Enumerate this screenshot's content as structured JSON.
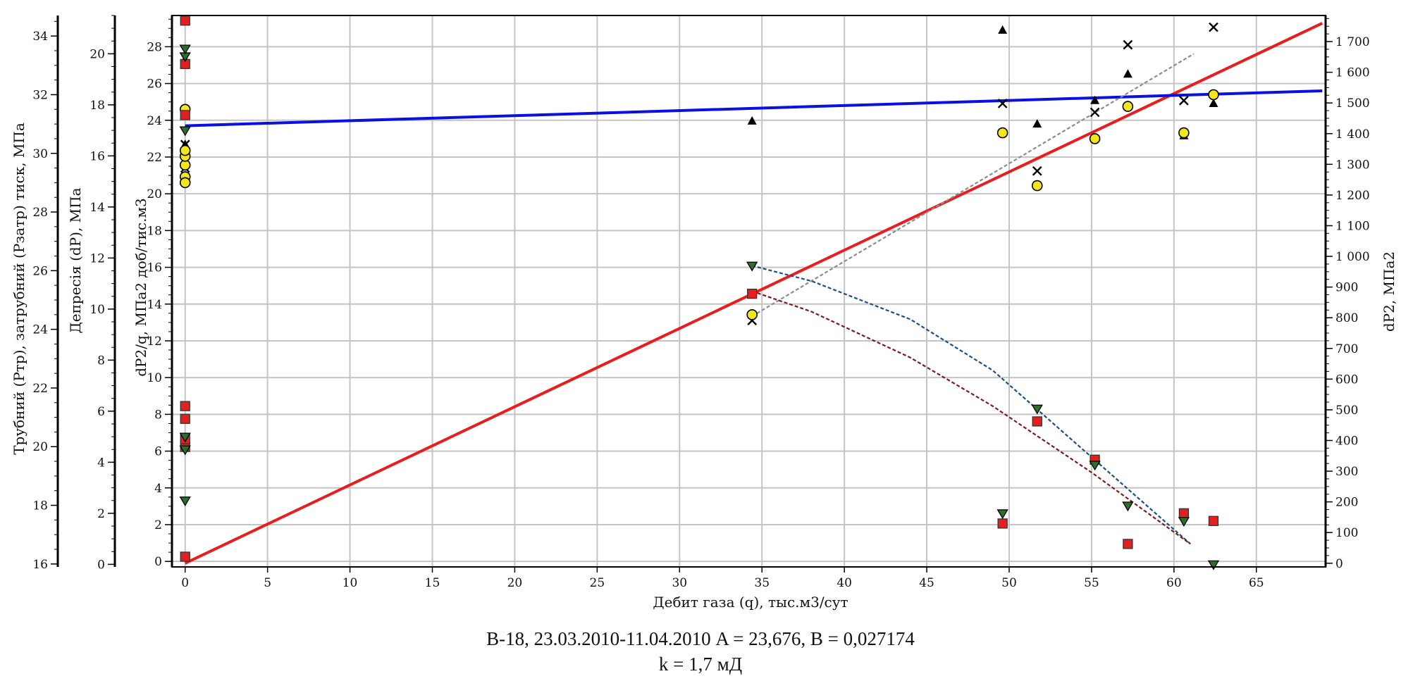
{
  "chart_data": {
    "type": "scatter",
    "xlabel": "Дебит газа (q), тыс.м3/сут",
    "xlim": [
      -0.8,
      69.2
    ],
    "xticks": [
      0,
      5,
      10,
      15,
      20,
      25,
      30,
      35,
      40,
      45,
      50,
      55,
      60,
      65
    ],
    "grid": true,
    "axes": {
      "ptr": {
        "label": "Трубний (Ртр), затрубний (Рзатр) тиск, МПа",
        "ylim": [
          15.9,
          34.7
        ],
        "ticks": [
          16,
          18,
          20,
          22,
          24,
          26,
          28,
          30,
          32,
          34
        ]
      },
      "dp": {
        "label": "Депресія (dP), МПа",
        "ylim": [
          -0.1,
          21.5
        ],
        "ticks": [
          0,
          2,
          4,
          6,
          8,
          10,
          12,
          14,
          16,
          18,
          20
        ]
      },
      "dp2q": {
        "label": "dP2/q, МПа2 доб/тис.м3",
        "ylim": [
          -0.3,
          29.7
        ],
        "ticks": [
          0,
          2,
          4,
          6,
          8,
          10,
          12,
          14,
          16,
          18,
          20,
          22,
          24,
          26,
          28
        ]
      },
      "dp2": {
        "label": "dP2, МПа2",
        "ylim": [
          -12,
          1785
        ],
        "ticks": [
          0,
          100,
          200,
          300,
          400,
          500,
          600,
          700,
          800,
          900,
          1000,
          1100,
          1200,
          1300,
          1400,
          1500,
          1600,
          1700
        ],
        "tick_labels": [
          "0",
          "100",
          "200",
          "300",
          "400",
          "500",
          "600",
          "700",
          "800",
          "900",
          "1 000",
          "1 100",
          "1 200",
          "1 300",
          "1 400",
          "1 500",
          "1 600",
          "1 700"
        ]
      }
    },
    "series": [
      {
        "marker": "line",
        "axis": "dp2",
        "color": "#e81e1e",
        "x": [
          0,
          69
        ],
        "y": [
          0,
          1760
        ]
      },
      {
        "marker": "line",
        "axis": "dp2q",
        "color": "#0a10e0",
        "x": [
          0,
          69
        ],
        "y": [
          23.7,
          25.6
        ]
      },
      {
        "marker": "dashed",
        "axis": "dp2",
        "color": "#8c8c8c",
        "x": [
          34.4,
          61.2
        ],
        "y": [
          805,
          1660
        ]
      },
      {
        "marker": "dashed",
        "axis": "dp",
        "color": "#1a4f86",
        "x": [
          34.4,
          38,
          44,
          49,
          52,
          55,
          58,
          61
        ],
        "y": [
          11.7,
          11.1,
          9.6,
          7.6,
          5.9,
          4.2,
          2.5,
          0.8
        ]
      },
      {
        "marker": "dashed",
        "axis": "dp",
        "color": "#7f1a1a",
        "x": [
          34.4,
          38,
          44,
          49,
          52,
          55,
          58,
          61
        ],
        "y": [
          10.7,
          9.9,
          8.1,
          6.2,
          4.9,
          3.6,
          2.2,
          0.8
        ]
      },
      {
        "marker": "triangle-up",
        "axis": "ptr",
        "color": "#000000",
        "x": [
          0,
          0,
          34.4,
          49.6,
          51.7,
          55.2,
          57.2,
          60.6,
          62.4
        ],
        "y": [
          30.3,
          33.2,
          31.1,
          34.2,
          31.0,
          31.8,
          32.7,
          30.6,
          31.7
        ]
      },
      {
        "marker": "cross",
        "axis": "ptr",
        "color": "#000000",
        "x": [
          0,
          0,
          34.4,
          49.6,
          51.7,
          55.2,
          57.2,
          60.6,
          62.4
        ],
        "y": [
          29.5,
          30.3,
          24.3,
          31.7,
          29.4,
          31.4,
          33.7,
          31.8,
          34.3
        ]
      },
      {
        "marker": "circle",
        "axis": "ptr",
        "color": "#f4e61c",
        "x": [
          0,
          0,
          0,
          0,
          0,
          0,
          34.4,
          49.6,
          51.7,
          55.2,
          57.2,
          60.6,
          62.4
        ],
        "y": [
          29.2,
          29.6,
          29.9,
          30.1,
          29.0,
          31.5,
          24.5,
          30.7,
          28.9,
          30.5,
          31.6,
          30.7,
          32.0
        ]
      },
      {
        "marker": "square",
        "axis": "dp",
        "color": "#e41f1f",
        "x": [
          0,
          0,
          0,
          0,
          0,
          0,
          0,
          0,
          34.4,
          49.6,
          51.7,
          55.2,
          57.2,
          60.6,
          62.4
        ],
        "y": [
          0.3,
          4.6,
          4.9,
          5.7,
          6.2,
          17.6,
          19.6,
          21.3,
          10.6,
          1.6,
          5.6,
          4.1,
          0.8,
          2.0,
          1.7
        ]
      },
      {
        "marker": "triangle-down",
        "axis": "dp",
        "color": "#2c6e2c",
        "x": [
          0,
          0,
          0,
          0,
          0,
          0,
          34.4,
          49.6,
          51.7,
          55.2,
          57.2,
          60.6,
          62.4
        ],
        "y": [
          2.5,
          4.5,
          5.0,
          17.0,
          19.9,
          20.2,
          11.7,
          2.0,
          6.1,
          3.9,
          2.3,
          1.7,
          0.0
        ]
      }
    ]
  },
  "caption": {
    "line1": "В-18, 23.03.2010-11.04.2010 A = 23,676, B = 0,027174",
    "line2": "k = 1,7 мД"
  }
}
